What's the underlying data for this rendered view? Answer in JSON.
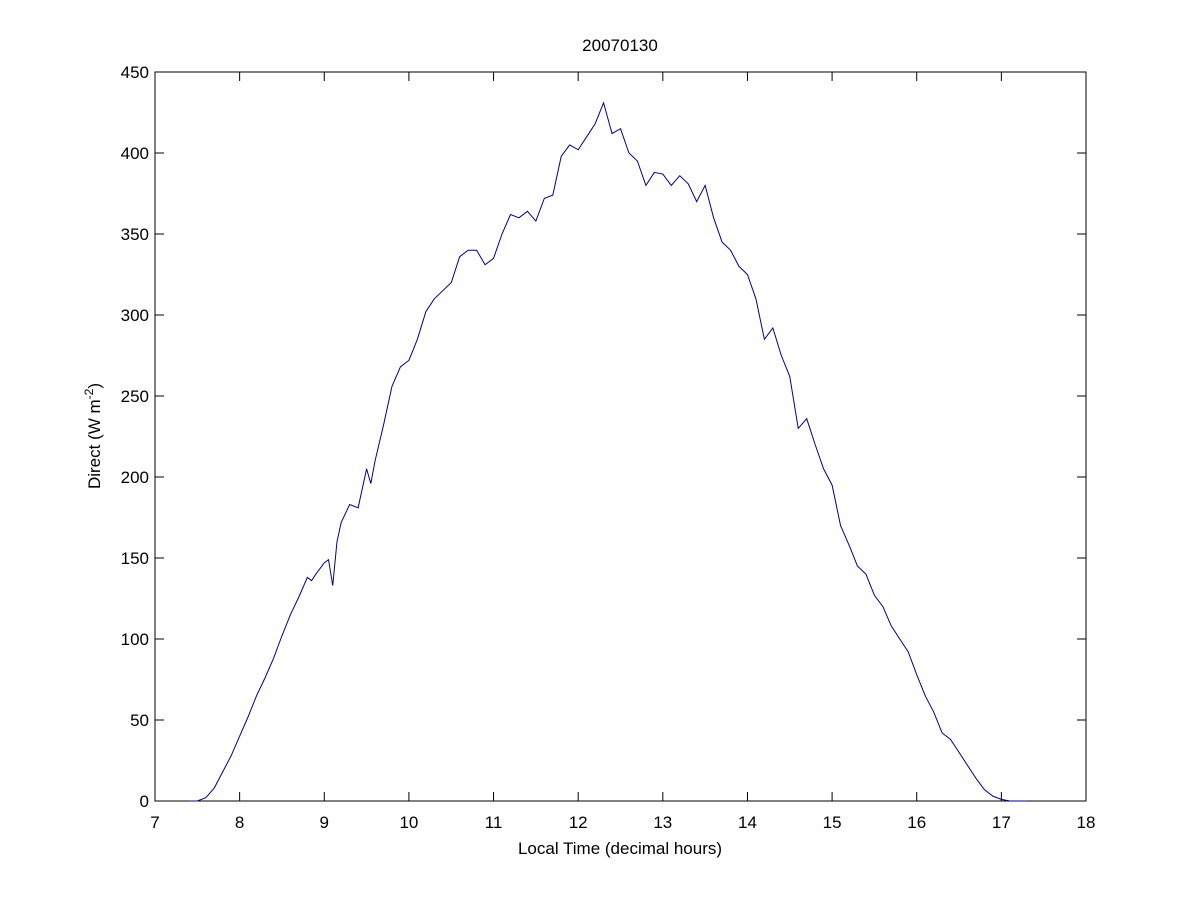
{
  "chart_data": {
    "type": "line",
    "title": "20070130",
    "xlabel": "Local Time (decimal hours)",
    "ylabel_parts": [
      "Direct (W m",
      "-2",
      ")"
    ],
    "xlim": [
      7,
      18
    ],
    "xticks": [
      7,
      8,
      9,
      10,
      11,
      12,
      13,
      14,
      15,
      16,
      17,
      18
    ],
    "ylim": [
      0,
      450
    ],
    "yticks": [
      0,
      50,
      100,
      150,
      200,
      250,
      300,
      350,
      400,
      450
    ],
    "grid": false,
    "series": [
      {
        "color": "#00008b",
        "x": [
          7.4,
          7.5,
          7.6,
          7.7,
          7.8,
          7.9,
          8.0,
          8.1,
          8.2,
          8.3,
          8.4,
          8.5,
          8.6,
          8.7,
          8.8,
          8.85,
          8.9,
          9.0,
          9.05,
          9.1,
          9.15,
          9.2,
          9.3,
          9.4,
          9.5,
          9.55,
          9.6,
          9.7,
          9.8,
          9.9,
          10.0,
          10.1,
          10.2,
          10.3,
          10.4,
          10.5,
          10.6,
          10.7,
          10.8,
          10.9,
          11.0,
          11.1,
          11.2,
          11.3,
          11.4,
          11.5,
          11.6,
          11.7,
          11.8,
          11.9,
          12.0,
          12.1,
          12.2,
          12.3,
          12.4,
          12.5,
          12.6,
          12.7,
          12.8,
          12.9,
          13.0,
          13.1,
          13.2,
          13.3,
          13.4,
          13.5,
          13.6,
          13.7,
          13.8,
          13.9,
          14.0,
          14.1,
          14.2,
          14.3,
          14.4,
          14.5,
          14.6,
          14.7,
          14.8,
          14.9,
          15.0,
          15.1,
          15.2,
          15.3,
          15.4,
          15.5,
          15.6,
          15.7,
          15.8,
          15.9,
          16.0,
          16.1,
          16.2,
          16.3,
          16.4,
          16.5,
          16.6,
          16.7,
          16.8,
          16.9,
          17.0,
          17.1,
          17.3
        ],
        "values": [
          0,
          0,
          2,
          8,
          18,
          28,
          40,
          52,
          65,
          76,
          88,
          102,
          115,
          126,
          138,
          136,
          140,
          147,
          149,
          133,
          160,
          172,
          183,
          181,
          205,
          196,
          210,
          232,
          256,
          268,
          272,
          285,
          302,
          310,
          315,
          320,
          336,
          340,
          340,
          331,
          335,
          350,
          362,
          360,
          364,
          358,
          372,
          374,
          398,
          405,
          402,
          410,
          418,
          431,
          412,
          415,
          400,
          395,
          380,
          388,
          387,
          380,
          386,
          381,
          370,
          380,
          360,
          345,
          340,
          330,
          325,
          310,
          285,
          292,
          275,
          262,
          230,
          236,
          220,
          205,
          195,
          170,
          158,
          145,
          140,
          127,
          120,
          108,
          100,
          92,
          78,
          65,
          55,
          42,
          38,
          30,
          22,
          14,
          7,
          3,
          1,
          0,
          0
        ]
      }
    ]
  }
}
